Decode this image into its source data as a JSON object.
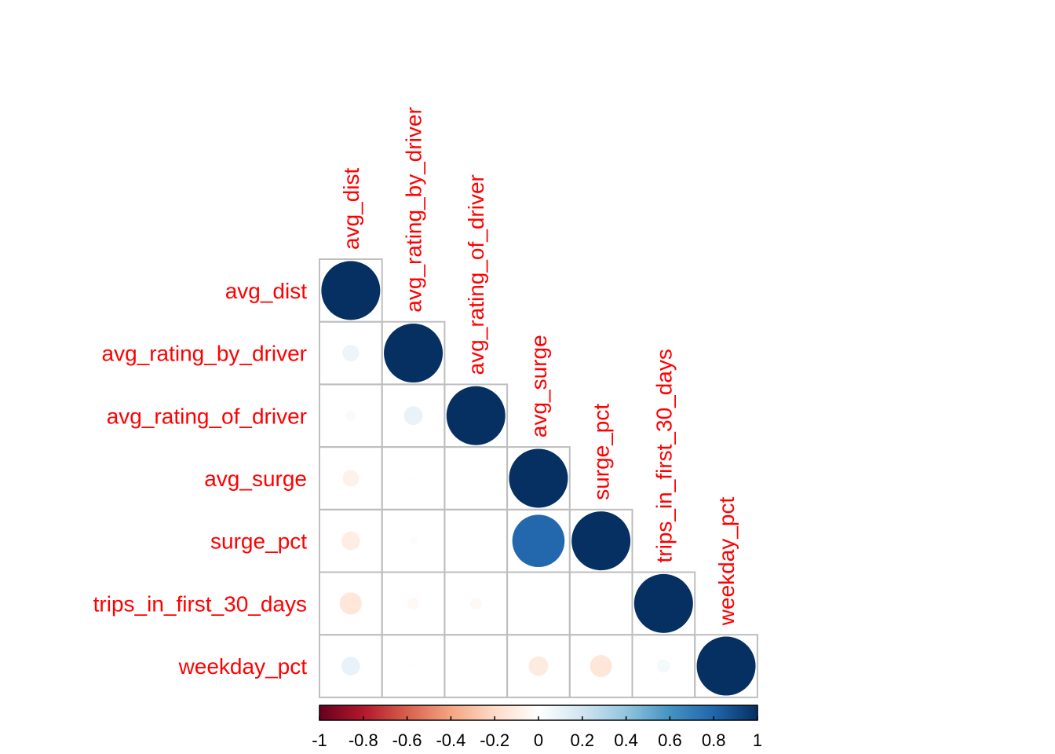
{
  "chart_data": {
    "type": "heatmap",
    "variables": [
      "avg_dist",
      "avg_rating_by_driver",
      "avg_rating_of_driver",
      "avg_surge",
      "surge_pct",
      "trips_in_first_30_days",
      "weekday_pct"
    ],
    "matrix": [
      [
        1.0,
        null,
        null,
        null,
        null,
        null,
        null
      ],
      [
        0.08,
        1.0,
        null,
        null,
        null,
        null,
        null
      ],
      [
        0.03,
        0.1,
        1.0,
        null,
        null,
        null,
        null
      ],
      [
        -0.08,
        0.01,
        -0.0,
        1.0,
        null,
        null,
        null
      ],
      [
        -0.1,
        0.02,
        -0.0,
        0.79,
        1.0,
        null,
        null
      ],
      [
        -0.14,
        -0.04,
        -0.04,
        -0.0,
        0.0,
        1.0,
        null
      ],
      [
        0.1,
        0.01,
        -0.0,
        -0.11,
        -0.14,
        0.05,
        1.0
      ]
    ],
    "colorbar": {
      "ticks": [
        "-1",
        "-0.8",
        "-0.6",
        "-0.4",
        "-0.2",
        "0",
        "0.2",
        "0.4",
        "0.6",
        "0.8",
        "1"
      ],
      "range": [
        -1,
        1
      ],
      "colors": [
        "#67001F",
        "#B2182B",
        "#D6604D",
        "#F4A582",
        "#FDDBC7",
        "#FFFFFF",
        "#D1E5F0",
        "#92C5DE",
        "#4393C3",
        "#2166AC",
        "#053061"
      ]
    }
  }
}
